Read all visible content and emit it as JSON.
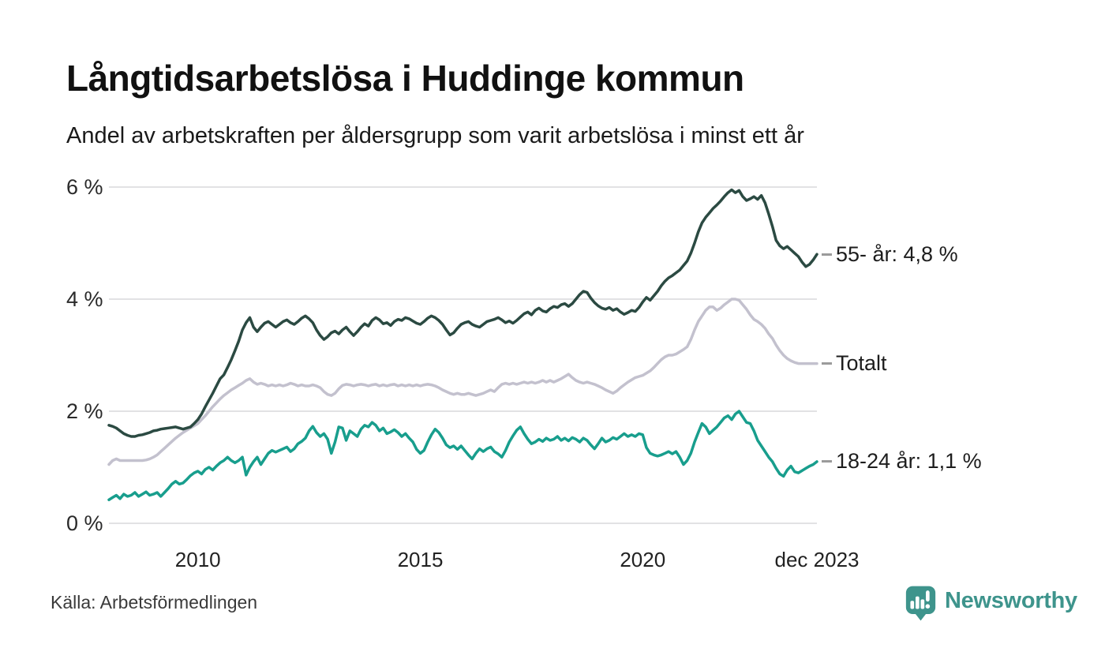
{
  "header": {
    "title": "Långtidsarbetslösa i Huddinge kommun",
    "subtitle": "Andel av arbetskraften per åldersgrupp som varit arbetslösa i minst ett år"
  },
  "colors": {
    "grid": "#e2e2e4",
    "tick_dash": "#9b9b9b",
    "series_55": "#2b4a42",
    "series_total": "#c3c1ce",
    "series_1824": "#189e8d",
    "brand_teal": "#3e948c"
  },
  "footer": {
    "source": "Källa: Arbetsförmedlingen",
    "brand": "Newsworthy"
  },
  "chart_data": {
    "type": "line",
    "title": "Långtidsarbetslösa i Huddinge kommun",
    "subtitle": "Andel av arbetskraften per åldersgrupp som varit arbetslösa i minst ett år",
    "x_unit": "month",
    "x_start": "2008-01",
    "x_end": "2023-12",
    "ylim": [
      0,
      6
    ],
    "grid": true,
    "legend_position": "right-end-labels",
    "yticks": [
      {
        "label": "6 %",
        "value": 6
      },
      {
        "label": "4 %",
        "value": 4
      },
      {
        "label": "2 %",
        "value": 2
      },
      {
        "label": "0 %",
        "value": 0
      }
    ],
    "xticks": [
      {
        "label": "2010",
        "month": 24
      },
      {
        "label": "2015",
        "month": 84
      },
      {
        "label": "2020",
        "month": 144
      },
      {
        "label": "dec 2023",
        "month": 191
      }
    ],
    "series": [
      {
        "name": "Totalt",
        "label": "Totalt",
        "end_value": 2.85,
        "color": "#c3c1ce",
        "values": [
          1.05,
          1.12,
          1.15,
          1.12,
          1.12,
          1.12,
          1.12,
          1.12,
          1.12,
          1.12,
          1.13,
          1.15,
          1.18,
          1.22,
          1.28,
          1.34,
          1.4,
          1.46,
          1.52,
          1.57,
          1.62,
          1.66,
          1.7,
          1.74,
          1.78,
          1.85,
          1.92,
          2.0,
          2.08,
          2.15,
          2.22,
          2.28,
          2.33,
          2.38,
          2.42,
          2.46,
          2.5,
          2.55,
          2.58,
          2.52,
          2.48,
          2.5,
          2.48,
          2.45,
          2.47,
          2.45,
          2.47,
          2.45,
          2.47,
          2.5,
          2.48,
          2.45,
          2.47,
          2.45,
          2.45,
          2.47,
          2.45,
          2.42,
          2.35,
          2.3,
          2.28,
          2.32,
          2.4,
          2.46,
          2.48,
          2.47,
          2.45,
          2.47,
          2.48,
          2.47,
          2.45,
          2.47,
          2.48,
          2.45,
          2.47,
          2.45,
          2.47,
          2.48,
          2.45,
          2.47,
          2.45,
          2.47,
          2.45,
          2.47,
          2.45,
          2.47,
          2.48,
          2.47,
          2.45,
          2.42,
          2.38,
          2.35,
          2.32,
          2.3,
          2.32,
          2.3,
          2.3,
          2.32,
          2.3,
          2.28,
          2.3,
          2.32,
          2.35,
          2.38,
          2.35,
          2.42,
          2.48,
          2.5,
          2.48,
          2.5,
          2.48,
          2.5,
          2.52,
          2.5,
          2.52,
          2.5,
          2.52,
          2.55,
          2.52,
          2.55,
          2.52,
          2.55,
          2.58,
          2.62,
          2.66,
          2.6,
          2.55,
          2.52,
          2.5,
          2.52,
          2.5,
          2.48,
          2.45,
          2.42,
          2.38,
          2.35,
          2.32,
          2.36,
          2.42,
          2.47,
          2.52,
          2.56,
          2.6,
          2.62,
          2.64,
          2.68,
          2.72,
          2.78,
          2.85,
          2.92,
          2.97,
          3.0,
          3.0,
          3.02,
          3.06,
          3.1,
          3.15,
          3.28,
          3.45,
          3.6,
          3.7,
          3.8,
          3.86,
          3.86,
          3.8,
          3.84,
          3.9,
          3.95,
          4.0,
          4.0,
          3.98,
          3.9,
          3.82,
          3.72,
          3.64,
          3.6,
          3.55,
          3.48,
          3.38,
          3.3,
          3.18,
          3.08,
          3.0,
          2.94,
          2.9,
          2.87,
          2.85,
          2.85,
          2.85,
          2.85,
          2.85,
          2.85
        ]
      },
      {
        "name": "18-24 år",
        "label": "18-24 år: 1,1 %",
        "end_value": 1.1,
        "color": "#189e8d",
        "values": [
          0.42,
          0.46,
          0.5,
          0.44,
          0.52,
          0.48,
          0.5,
          0.55,
          0.48,
          0.52,
          0.56,
          0.5,
          0.52,
          0.55,
          0.48,
          0.55,
          0.62,
          0.7,
          0.75,
          0.7,
          0.72,
          0.78,
          0.85,
          0.9,
          0.93,
          0.88,
          0.96,
          1.0,
          0.95,
          1.02,
          1.08,
          1.12,
          1.18,
          1.12,
          1.08,
          1.12,
          1.18,
          0.86,
          1.0,
          1.1,
          1.18,
          1.05,
          1.15,
          1.25,
          1.3,
          1.27,
          1.3,
          1.33,
          1.36,
          1.28,
          1.33,
          1.42,
          1.46,
          1.52,
          1.65,
          1.73,
          1.62,
          1.55,
          1.6,
          1.5,
          1.25,
          1.45,
          1.72,
          1.7,
          1.48,
          1.65,
          1.6,
          1.55,
          1.68,
          1.75,
          1.72,
          1.8,
          1.75,
          1.65,
          1.7,
          1.6,
          1.63,
          1.67,
          1.62,
          1.55,
          1.6,
          1.52,
          1.45,
          1.32,
          1.25,
          1.3,
          1.45,
          1.58,
          1.68,
          1.62,
          1.52,
          1.4,
          1.35,
          1.38,
          1.32,
          1.38,
          1.3,
          1.22,
          1.15,
          1.25,
          1.33,
          1.28,
          1.33,
          1.36,
          1.28,
          1.24,
          1.18,
          1.3,
          1.45,
          1.56,
          1.66,
          1.72,
          1.6,
          1.5,
          1.42,
          1.45,
          1.5,
          1.46,
          1.52,
          1.48,
          1.5,
          1.55,
          1.48,
          1.52,
          1.47,
          1.53,
          1.5,
          1.45,
          1.52,
          1.48,
          1.4,
          1.33,
          1.42,
          1.52,
          1.45,
          1.48,
          1.53,
          1.5,
          1.55,
          1.6,
          1.55,
          1.58,
          1.55,
          1.6,
          1.58,
          1.35,
          1.25,
          1.22,
          1.2,
          1.22,
          1.25,
          1.28,
          1.24,
          1.28,
          1.18,
          1.05,
          1.12,
          1.25,
          1.45,
          1.62,
          1.78,
          1.72,
          1.6,
          1.66,
          1.72,
          1.8,
          1.88,
          1.92,
          1.85,
          1.95,
          2.0,
          1.9,
          1.8,
          1.78,
          1.65,
          1.48,
          1.38,
          1.28,
          1.18,
          1.1,
          0.98,
          0.88,
          0.84,
          0.95,
          1.02,
          0.92,
          0.9,
          0.94,
          0.98,
          1.02,
          1.05,
          1.1
        ]
      },
      {
        "name": "55- år",
        "label": "55- år: 4,8 %",
        "end_value": 4.8,
        "color": "#2b4a42",
        "values": [
          1.75,
          1.73,
          1.7,
          1.65,
          1.6,
          1.57,
          1.55,
          1.55,
          1.57,
          1.58,
          1.6,
          1.62,
          1.65,
          1.66,
          1.68,
          1.69,
          1.7,
          1.71,
          1.72,
          1.7,
          1.68,
          1.7,
          1.72,
          1.78,
          1.85,
          1.95,
          2.08,
          2.2,
          2.32,
          2.45,
          2.58,
          2.65,
          2.78,
          2.92,
          3.08,
          3.25,
          3.45,
          3.58,
          3.67,
          3.5,
          3.42,
          3.5,
          3.57,
          3.6,
          3.55,
          3.5,
          3.55,
          3.6,
          3.63,
          3.58,
          3.55,
          3.6,
          3.66,
          3.7,
          3.65,
          3.58,
          3.45,
          3.35,
          3.28,
          3.33,
          3.4,
          3.43,
          3.38,
          3.45,
          3.5,
          3.42,
          3.35,
          3.42,
          3.5,
          3.56,
          3.52,
          3.62,
          3.67,
          3.63,
          3.56,
          3.58,
          3.53,
          3.6,
          3.64,
          3.62,
          3.67,
          3.65,
          3.61,
          3.57,
          3.55,
          3.6,
          3.66,
          3.7,
          3.67,
          3.62,
          3.55,
          3.45,
          3.36,
          3.4,
          3.48,
          3.55,
          3.58,
          3.6,
          3.55,
          3.52,
          3.5,
          3.55,
          3.6,
          3.62,
          3.64,
          3.67,
          3.63,
          3.58,
          3.61,
          3.57,
          3.62,
          3.68,
          3.74,
          3.77,
          3.72,
          3.8,
          3.84,
          3.79,
          3.77,
          3.83,
          3.87,
          3.85,
          3.9,
          3.92,
          3.87,
          3.92,
          4.0,
          4.08,
          4.14,
          4.12,
          4.02,
          3.94,
          3.88,
          3.84,
          3.82,
          3.85,
          3.8,
          3.83,
          3.77,
          3.73,
          3.76,
          3.8,
          3.78,
          3.85,
          3.95,
          4.03,
          3.98,
          4.06,
          4.14,
          4.24,
          4.32,
          4.38,
          4.42,
          4.47,
          4.52,
          4.6,
          4.68,
          4.82,
          5.0,
          5.2,
          5.36,
          5.46,
          5.54,
          5.62,
          5.68,
          5.75,
          5.83,
          5.9,
          5.95,
          5.9,
          5.94,
          5.83,
          5.76,
          5.79,
          5.83,
          5.78,
          5.85,
          5.72,
          5.52,
          5.3,
          5.05,
          4.95,
          4.9,
          4.94,
          4.88,
          4.82,
          4.76,
          4.66,
          4.58,
          4.62,
          4.7,
          4.8
        ]
      }
    ]
  }
}
